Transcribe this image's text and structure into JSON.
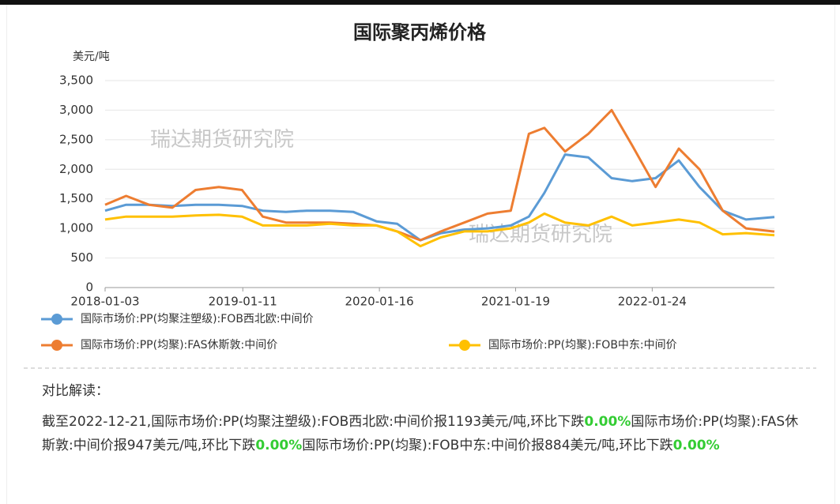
{
  "chart_data": {
    "type": "line",
    "title": "国际聚丙烯价格",
    "y_label": "美元/吨",
    "watermarks": [
      "瑞达期货研究院",
      "瑞达期货研究院"
    ],
    "x": [
      "2018-01-03",
      "2018-03-01",
      "2018-05-02",
      "2018-07-04",
      "2018-09-05",
      "2018-11-07",
      "2019-01-09",
      "2019-03-06",
      "2019-05-08",
      "2019-07-03",
      "2019-09-04",
      "2019-11-06",
      "2020-01-08",
      "2020-03-04",
      "2020-05-06",
      "2020-07-01",
      "2020-09-02",
      "2020-11-04",
      "2021-01-06",
      "2021-02-24",
      "2021-04-07",
      "2021-06-02",
      "2021-08-04",
      "2021-10-06",
      "2021-12-01",
      "2022-02-02",
      "2022-04-06",
      "2022-06-01",
      "2022-08-03",
      "2022-10-05",
      "2022-12-21"
    ],
    "xlim": [
      "2018-01-03",
      "2022-12-21"
    ],
    "xticks": [
      "2018-01-03",
      "2019-01-11",
      "2020-01-16",
      "2021-01-19",
      "2022-01-24"
    ],
    "ylim": [
      0,
      3500
    ],
    "yticks": [
      0,
      500,
      {
        "value": 1000,
        "label": "1,000"
      },
      {
        "value": 1500,
        "label": "1,500"
      },
      {
        "value": 2000,
        "label": "2,000"
      },
      {
        "value": 2500,
        "label": "2,500"
      },
      {
        "value": 3000,
        "label": "3,000"
      },
      {
        "value": 3500,
        "label": "3,500"
      }
    ],
    "grid": true,
    "series": [
      {
        "name": "国际市场价:PP(均聚注塑级):FOB西北欧:中间价",
        "color": "#5b9bd5",
        "values": [
          1300,
          1400,
          1400,
          1380,
          1400,
          1400,
          1380,
          1300,
          1280,
          1300,
          1300,
          1280,
          1120,
          1080,
          800,
          920,
          980,
          1000,
          1050,
          1200,
          1600,
          2250,
          2200,
          1850,
          1800,
          1850,
          2150,
          1700,
          1300,
          1150,
          1193
        ]
      },
      {
        "name": "国际市场价:PP(均聚):FAS休斯敦:中间价",
        "color": "#ed7d31",
        "values": [
          1400,
          1550,
          1400,
          1350,
          1650,
          1700,
          1650,
          1200,
          1100,
          1100,
          1100,
          1080,
          1050,
          950,
          800,
          950,
          1100,
          1250,
          1300,
          2600,
          2700,
          2300,
          2600,
          3000,
          2400,
          1700,
          2350,
          2000,
          1300,
          1000,
          947
        ]
      },
      {
        "name": "国际市场价:PP(均聚):FOB中东:中间价",
        "color": "#ffc000",
        "values": [
          1150,
          1200,
          1200,
          1200,
          1220,
          1230,
          1200,
          1050,
          1050,
          1050,
          1080,
          1050,
          1050,
          950,
          700,
          850,
          950,
          950,
          1000,
          1100,
          1250,
          1100,
          1050,
          1200,
          1050,
          1100,
          1150,
          1100,
          900,
          920,
          884
        ]
      }
    ]
  },
  "analysis": {
    "heading": "对比解读：",
    "segments": [
      {
        "text": "截至2022-12-21,国际市场价:PP(均聚注塑级):FOB西北欧:中间价报1193美元/吨,环比下跌",
        "highlight": false
      },
      {
        "text": "0.00%",
        "highlight": true
      },
      {
        "text": "国际市场价:PP(均聚):FAS休斯敦:中间价报947美元/吨,环比下跌",
        "highlight": false
      },
      {
        "text": "0.00%",
        "highlight": true
      },
      {
        "text": "国际市场价:PP(均聚):FOB中东:中间价报884美元/吨,环比下跌",
        "highlight": false
      },
      {
        "text": "0.00%",
        "highlight": true
      }
    ]
  }
}
